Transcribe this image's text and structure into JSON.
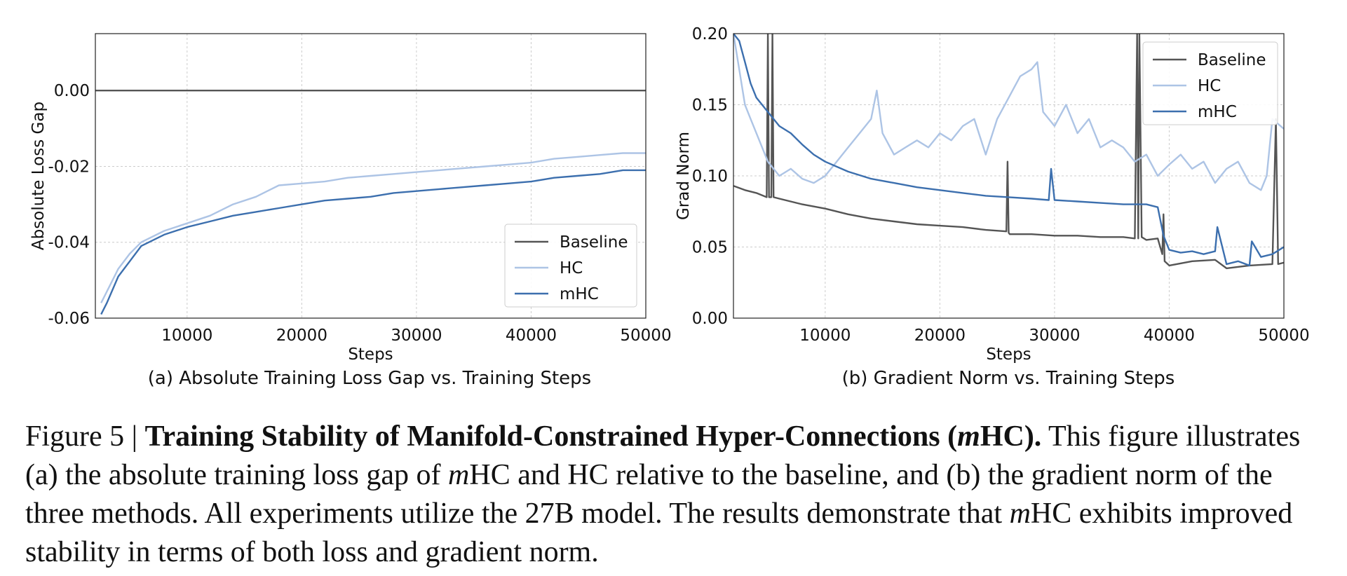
{
  "chart_data": [
    {
      "type": "line",
      "xlabel": "Steps",
      "ylabel": "Absolute Loss Gap",
      "subtitle": "(a) Absolute Training Loss Gap vs. Training Steps",
      "xlim": [
        2000,
        50000
      ],
      "ylim": [
        -0.06,
        0.015
      ],
      "xticks": [
        "10000",
        "20000",
        "30000",
        "40000",
        "50000"
      ],
      "yticks": [
        "0.00",
        "-0.02",
        "-0.04",
        "-0.06"
      ],
      "grid": true,
      "legend": "lower-right",
      "series": [
        {
          "name": "Baseline",
          "color": "#555555",
          "x": [
            2000,
            50000
          ],
          "y": [
            0.0,
            0.0
          ]
        },
        {
          "name": "HC",
          "color": "#adc4e5",
          "x": [
            2500,
            3000,
            4000,
            5000,
            6000,
            8000,
            10000,
            12000,
            14000,
            16000,
            18000,
            20000,
            22000,
            24000,
            26000,
            28000,
            30000,
            32000,
            34000,
            36000,
            38000,
            40000,
            42000,
            44000,
            46000,
            48000,
            50000
          ],
          "y": [
            -0.056,
            -0.053,
            -0.047,
            -0.043,
            -0.04,
            -0.037,
            -0.035,
            -0.033,
            -0.03,
            -0.028,
            -0.025,
            -0.0245,
            -0.024,
            -0.023,
            -0.0225,
            -0.022,
            -0.0215,
            -0.021,
            -0.0205,
            -0.02,
            -0.0195,
            -0.019,
            -0.018,
            -0.0175,
            -0.017,
            -0.0165,
            -0.0165
          ]
        },
        {
          "name": "mHC",
          "color": "#3c6fae",
          "x": [
            2500,
            3000,
            4000,
            5000,
            6000,
            8000,
            10000,
            12000,
            14000,
            16000,
            18000,
            20000,
            22000,
            24000,
            26000,
            28000,
            30000,
            32000,
            34000,
            36000,
            38000,
            40000,
            42000,
            44000,
            46000,
            48000,
            50000
          ],
          "y": [
            -0.059,
            -0.056,
            -0.049,
            -0.045,
            -0.041,
            -0.038,
            -0.036,
            -0.0345,
            -0.033,
            -0.032,
            -0.031,
            -0.03,
            -0.029,
            -0.0285,
            -0.028,
            -0.027,
            -0.0265,
            -0.026,
            -0.0255,
            -0.025,
            -0.0245,
            -0.024,
            -0.023,
            -0.0225,
            -0.022,
            -0.021,
            -0.021
          ]
        }
      ]
    },
    {
      "type": "line",
      "xlabel": "Steps",
      "ylabel": "Grad Norm",
      "subtitle": "(b) Gradient Norm vs. Training Steps",
      "xlim": [
        2000,
        50000
      ],
      "ylim": [
        0.0,
        0.2
      ],
      "xticks": [
        "10000",
        "20000",
        "30000",
        "40000",
        "50000"
      ],
      "yticks": [
        "0.20",
        "0.15",
        "0.10",
        "0.05",
        "0.00"
      ],
      "grid": true,
      "legend": "top-right",
      "series": [
        {
          "name": "Baseline",
          "color": "#555555",
          "x": [
            2000,
            3000,
            4000,
            4900,
            5000,
            5100,
            5300,
            5400,
            5500,
            6000,
            8000,
            10000,
            12000,
            14000,
            16000,
            18000,
            20000,
            22000,
            24000,
            25800,
            25900,
            26000,
            26100,
            28000,
            30000,
            32000,
            34000,
            36000,
            37000,
            37200,
            37300,
            37400,
            37600,
            38000,
            39000,
            39400,
            39500,
            39600,
            40000,
            42000,
            44000,
            45000,
            47000,
            49000,
            49300,
            49500,
            50000
          ],
          "y": [
            0.093,
            0.09,
            0.088,
            0.085,
            0.2,
            0.085,
            0.085,
            0.2,
            0.085,
            0.084,
            0.08,
            0.077,
            0.073,
            0.07,
            0.068,
            0.066,
            0.065,
            0.064,
            0.062,
            0.061,
            0.11,
            0.06,
            0.059,
            0.059,
            0.058,
            0.058,
            0.057,
            0.057,
            0.056,
            0.2,
            0.056,
            0.2,
            0.057,
            0.055,
            0.056,
            0.045,
            0.073,
            0.04,
            0.037,
            0.04,
            0.041,
            0.035,
            0.037,
            0.038,
            0.14,
            0.038,
            0.039
          ]
        },
        {
          "name": "HC",
          "color": "#adc4e5",
          "x": [
            2000,
            2500,
            3000,
            3500,
            4000,
            5000,
            6000,
            7000,
            8000,
            9000,
            10000,
            11000,
            12000,
            13000,
            14000,
            14500,
            15000,
            16000,
            17000,
            18000,
            19000,
            20000,
            21000,
            22000,
            23000,
            24000,
            25000,
            26000,
            27000,
            28000,
            28500,
            29000,
            30000,
            31000,
            32000,
            33000,
            34000,
            35000,
            36000,
            37000,
            38000,
            39000,
            40000,
            41000,
            42000,
            43000,
            44000,
            45000,
            46000,
            47000,
            48000,
            48500,
            49000,
            50000
          ],
          "y": [
            0.2,
            0.175,
            0.15,
            0.14,
            0.13,
            0.11,
            0.1,
            0.105,
            0.098,
            0.095,
            0.1,
            0.11,
            0.12,
            0.13,
            0.14,
            0.16,
            0.13,
            0.115,
            0.12,
            0.125,
            0.12,
            0.13,
            0.125,
            0.135,
            0.14,
            0.115,
            0.14,
            0.155,
            0.17,
            0.175,
            0.18,
            0.145,
            0.135,
            0.15,
            0.13,
            0.14,
            0.12,
            0.125,
            0.12,
            0.11,
            0.115,
            0.1,
            0.108,
            0.115,
            0.105,
            0.11,
            0.095,
            0.105,
            0.11,
            0.095,
            0.09,
            0.1,
            0.14,
            0.133
          ]
        },
        {
          "name": "mHC",
          "color": "#3c6fae",
          "x": [
            2000,
            2500,
            3000,
            3500,
            4000,
            5000,
            6000,
            7000,
            8000,
            9000,
            10000,
            12000,
            14000,
            16000,
            18000,
            20000,
            22000,
            24000,
            26000,
            28000,
            29500,
            29700,
            30000,
            32000,
            34000,
            36000,
            38000,
            39000,
            39500,
            40000,
            41000,
            42000,
            43000,
            44000,
            44200,
            45000,
            46000,
            47000,
            47200,
            48000,
            49000,
            50000
          ],
          "y": [
            0.2,
            0.195,
            0.18,
            0.165,
            0.155,
            0.145,
            0.135,
            0.13,
            0.122,
            0.115,
            0.11,
            0.103,
            0.098,
            0.095,
            0.092,
            0.09,
            0.088,
            0.086,
            0.085,
            0.084,
            0.083,
            0.105,
            0.083,
            0.082,
            0.081,
            0.08,
            0.08,
            0.078,
            0.058,
            0.048,
            0.046,
            0.047,
            0.045,
            0.047,
            0.064,
            0.038,
            0.04,
            0.037,
            0.054,
            0.043,
            0.045,
            0.05
          ]
        }
      ]
    }
  ],
  "caption": {
    "figure_label": "Figure 5 | ",
    "title_pre": "Training Stability of Manifold-Constrained Hyper-Connections (",
    "title_m": "m",
    "title_post": "HC).",
    "text_1": " This figure illustrates (a) the absolute training loss gap of ",
    "m_1": "m",
    "text_2": "HC and HC relative to the baseline, and (b) the gradient norm of the three methods.  All experiments utilize the 27B model.  The results demonstrate that ",
    "m_2": "m",
    "text_3": "HC exhibits improved stability in terms of both loss and gradient norm."
  }
}
